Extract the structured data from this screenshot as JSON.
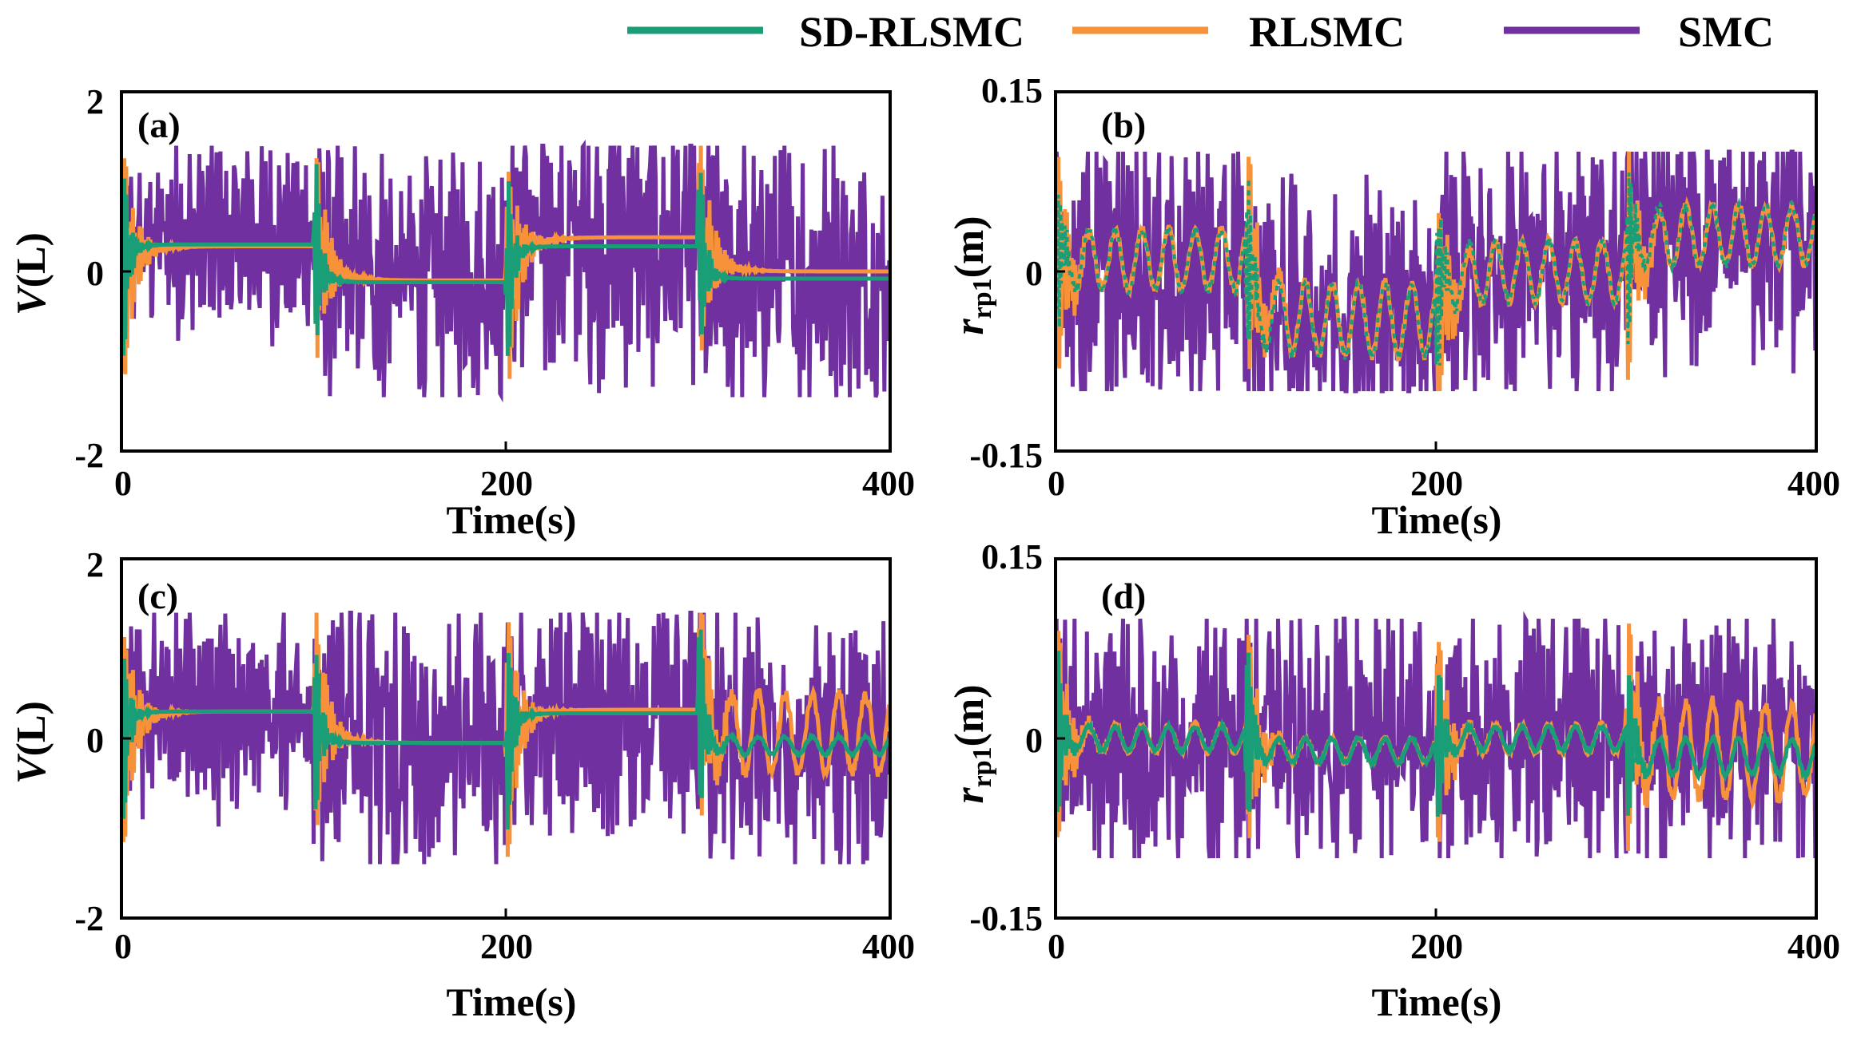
{
  "legend": {
    "items": [
      {
        "label": "SD-RLSMC",
        "color": "#1a9e77"
      },
      {
        "label": "RLSMC",
        "color": "#f7923a"
      },
      {
        "label": "SMC",
        "color": "#7030a0"
      }
    ]
  },
  "colors": {
    "sd_rlsmc": "#1a9e77",
    "rlsmc": "#f7923a",
    "smc": "#7030a0",
    "axis": "#000000"
  },
  "chart_data": [
    {
      "id": "a",
      "panel_label": "(a)",
      "type": "line",
      "ylabel": "V(L)",
      "ylabel_main": "V",
      "ylabel_unit": "(L)",
      "xlabel": "Time(s)",
      "xlim": [
        0,
        400
      ],
      "ylim": [
        -2,
        2
      ],
      "xticks": [
        "0",
        "200",
        "400"
      ],
      "yticks": [
        "-2",
        "0",
        "2"
      ],
      "events_s": [
        0,
        100,
        200,
        300
      ],
      "saturation": 1.4,
      "segments": {
        "smc": [
          {
            "start": 0,
            "end": 100,
            "mean": 0.35,
            "amp": 1.0
          },
          {
            "start": 100,
            "end": 200,
            "mean": -0.05,
            "amp": 1.3
          },
          {
            "start": 200,
            "end": 300,
            "mean": 0.3,
            "amp": 1.4
          },
          {
            "start": 300,
            "end": 400,
            "mean": -0.05,
            "amp": 1.4
          }
        ],
        "rlsmc": [
          {
            "start": 0,
            "end": 100,
            "settle": 0.28
          },
          {
            "start": 100,
            "end": 200,
            "settle": -0.1
          },
          {
            "start": 200,
            "end": 300,
            "settle": 0.38
          },
          {
            "start": 300,
            "end": 400,
            "settle": 0.0
          }
        ],
        "sd_rlsmc": [
          {
            "start": 0,
            "end": 100,
            "settle": 0.3
          },
          {
            "start": 100,
            "end": 200,
            "settle": -0.12
          },
          {
            "start": 200,
            "end": 300,
            "settle": 0.28
          },
          {
            "start": 300,
            "end": 400,
            "settle": -0.08
          }
        ]
      }
    },
    {
      "id": "b",
      "panel_label": "(b)",
      "type": "line",
      "ylabel": "r_rp1(m)",
      "ylabel_main": "r",
      "ylabel_sub": "rp1",
      "ylabel_unit": "(m)",
      "xlabel": "Time(s)",
      "xlim": [
        0,
        400
      ],
      "ylim": [
        -0.15,
        0.15
      ],
      "xticks": [
        "0",
        "200",
        "400"
      ],
      "yticks": [
        "-0.15",
        "0",
        "0.15"
      ],
      "events_s": [
        0,
        100,
        200,
        300
      ],
      "saturation": 0.1,
      "segments": {
        "smc": [
          {
            "start": 0,
            "end": 100,
            "mean": 0.0,
            "amp": 0.1
          },
          {
            "start": 100,
            "end": 200,
            "mean": -0.03,
            "amp": 0.1
          },
          {
            "start": 200,
            "end": 300,
            "mean": 0.0,
            "amp": 0.1
          },
          {
            "start": 300,
            "end": 400,
            "mean": 0.03,
            "amp": 0.1
          }
        ],
        "rlsmc": [
          {
            "start": 0,
            "end": 100,
            "settle": 0.01,
            "wave": 0.025
          },
          {
            "start": 100,
            "end": 200,
            "settle": -0.04,
            "wave": 0.03
          },
          {
            "start": 200,
            "end": 300,
            "settle": 0.0,
            "wave": 0.025
          },
          {
            "start": 300,
            "end": 400,
            "settle": 0.03,
            "wave": 0.025
          }
        ],
        "sd_rlsmc": [
          {
            "start": 0,
            "end": 100,
            "settle": 0.01,
            "wave": 0.025
          },
          {
            "start": 100,
            "end": 200,
            "settle": -0.04,
            "wave": 0.03
          },
          {
            "start": 200,
            "end": 300,
            "settle": 0.0,
            "wave": 0.025
          },
          {
            "start": 300,
            "end": 400,
            "settle": 0.03,
            "wave": 0.025
          }
        ]
      }
    },
    {
      "id": "c",
      "panel_label": "(c)",
      "type": "line",
      "ylabel": "V(L)",
      "ylabel_main": "V",
      "ylabel_unit": "(L)",
      "xlabel": "Time(s)",
      "xlim": [
        0,
        400
      ],
      "ylim": [
        -2,
        2
      ],
      "xticks": [
        "0",
        "200",
        "400"
      ],
      "yticks": [
        "-2",
        "0",
        "2"
      ],
      "events_s": [
        0,
        100,
        200,
        300
      ],
      "saturation": 1.4,
      "segments": {
        "smc": [
          {
            "start": 0,
            "end": 100,
            "mean": 0.3,
            "amp": 1.1
          },
          {
            "start": 100,
            "end": 200,
            "mean": 0.0,
            "amp": 1.4
          },
          {
            "start": 200,
            "end": 300,
            "mean": 0.3,
            "amp": 1.2
          },
          {
            "start": 300,
            "end": 400,
            "mean": -0.05,
            "amp": 1.3
          }
        ],
        "rlsmc": [
          {
            "start": 0,
            "end": 100,
            "settle": 0.3
          },
          {
            "start": 100,
            "end": 200,
            "settle": -0.05
          },
          {
            "start": 200,
            "end": 300,
            "settle": 0.32
          },
          {
            "start": 300,
            "end": 400,
            "settle": 0.05,
            "wave": 0.45
          }
        ],
        "sd_rlsmc": [
          {
            "start": 0,
            "end": 100,
            "settle": 0.3
          },
          {
            "start": 100,
            "end": 200,
            "settle": -0.05
          },
          {
            "start": 200,
            "end": 300,
            "settle": 0.28
          },
          {
            "start": 300,
            "end": 400,
            "settle": -0.08,
            "wave": 0.1
          }
        ]
      }
    },
    {
      "id": "d",
      "panel_label": "(d)",
      "type": "line",
      "ylabel": "r_rp1(m)",
      "ylabel_main": "r",
      "ylabel_sub": "rp1",
      "ylabel_unit": "(m)",
      "xlabel": "Time(s)",
      "xlim": [
        0,
        400
      ],
      "ylim": [
        -0.15,
        0.15
      ],
      "xticks": [
        "0",
        "200",
        "400"
      ],
      "yticks": [
        "-0.15",
        "0",
        "0.15"
      ],
      "events_s": [
        0,
        100,
        200,
        300
      ],
      "saturation": 0.1,
      "segments": {
        "smc": [
          {
            "start": 0,
            "end": 100,
            "mean": 0.0,
            "amp": 0.1
          },
          {
            "start": 100,
            "end": 200,
            "mean": 0.0,
            "amp": 0.1
          },
          {
            "start": 200,
            "end": 300,
            "mean": 0.0,
            "amp": 0.1
          },
          {
            "start": 300,
            "end": 400,
            "mean": 0.0,
            "amp": 0.1
          }
        ],
        "rlsmc": [
          {
            "start": 0,
            "end": 100,
            "settle": 0.0,
            "wave": 0.012
          },
          {
            "start": 100,
            "end": 200,
            "settle": -0.01,
            "wave": 0.01
          },
          {
            "start": 200,
            "end": 300,
            "settle": 0.0,
            "wave": 0.012
          },
          {
            "start": 300,
            "end": 400,
            "settle": -0.01,
            "wave": 0.04
          }
        ],
        "sd_rlsmc": [
          {
            "start": 0,
            "end": 100,
            "settle": 0.0,
            "wave": 0.01
          },
          {
            "start": 100,
            "end": 200,
            "settle": -0.01,
            "wave": 0.01
          },
          {
            "start": 200,
            "end": 300,
            "settle": 0.0,
            "wave": 0.01
          },
          {
            "start": 300,
            "end": 400,
            "settle": -0.015,
            "wave": 0.015
          }
        ]
      }
    }
  ]
}
